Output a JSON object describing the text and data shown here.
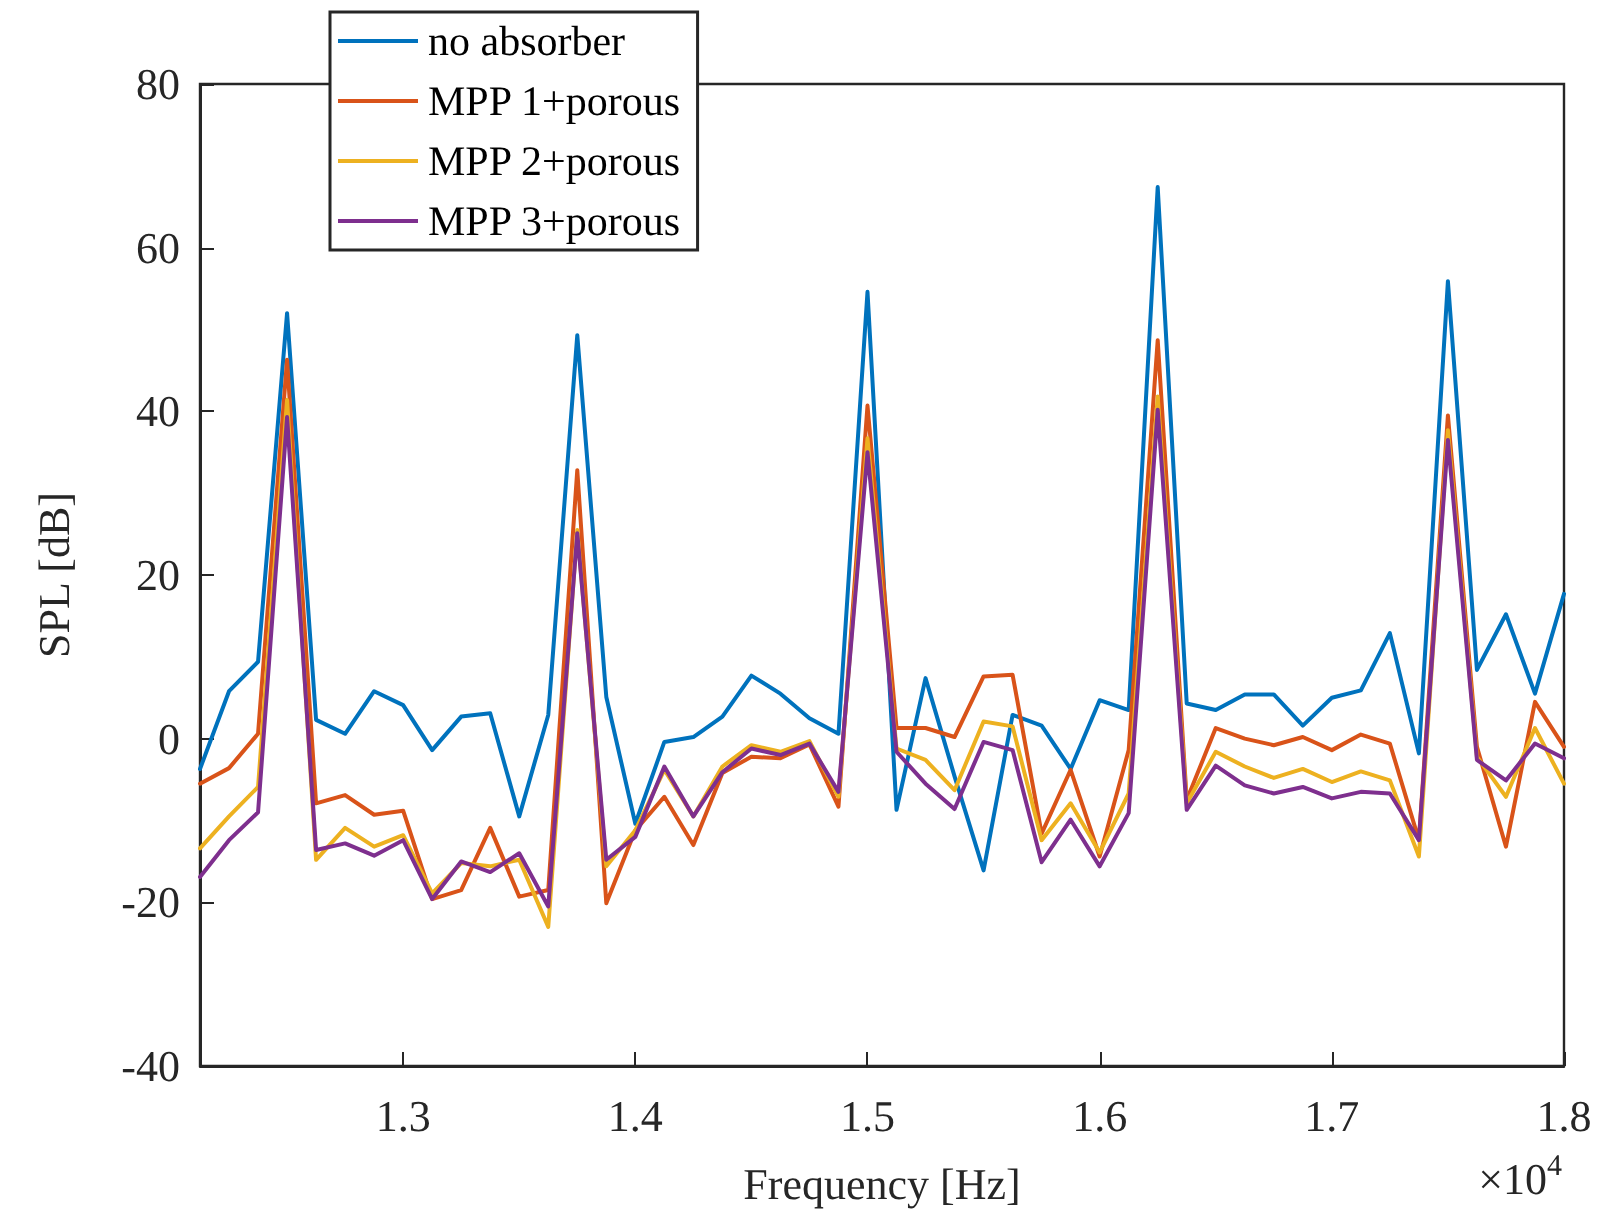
{
  "chart_data": {
    "type": "line",
    "xlabel": "Frequency [Hz]",
    "ylabel": "SPL [dB]",
    "annotations": [
      "×10$^{4}$"
    ],
    "x": [
      1.2125,
      1.225,
      1.2375,
      1.25,
      1.2625,
      1.275,
      1.2875,
      1.3,
      1.3125,
      1.325,
      1.3375,
      1.35,
      1.3625,
      1.375,
      1.3875,
      1.4,
      1.4125,
      1.425,
      1.4375,
      1.45,
      1.4625,
      1.475,
      1.4875,
      1.5,
      1.5125,
      1.525,
      1.5375,
      1.55,
      1.5625,
      1.575,
      1.5875,
      1.6,
      1.6125,
      1.625,
      1.6375,
      1.65,
      1.6625,
      1.675,
      1.6875,
      1.7,
      1.7125,
      1.725,
      1.7375,
      1.75,
      1.7625,
      1.775,
      1.7875,
      1.8
    ],
    "xlim": [
      1.2125,
      1.8
    ],
    "xticks": [
      1.3,
      1.4,
      1.5,
      1.6,
      1.7,
      1.8
    ],
    "ylim": [
      -40,
      80
    ],
    "yticks": [
      -40,
      -20,
      0,
      20,
      40,
      60,
      80
    ],
    "grid": false,
    "legend": "top left",
    "marker": "none",
    "line_style": "solid",
    "series": [
      {
        "name": "no absorber",
        "color": "#0072bd",
        "values": [
          -3.7,
          5.8,
          9.4,
          52.0,
          2.3,
          0.6,
          5.8,
          4.1,
          -1.4,
          2.7,
          3.1,
          -9.5,
          2.9,
          49.3,
          5.1,
          -10.4,
          -0.4,
          0.2,
          2.7,
          7.7,
          5.5,
          2.5,
          0.6,
          54.6,
          -8.7,
          7.4,
          -4.6,
          -16.1,
          2.9,
          1.6,
          -3.7,
          4.7,
          3.5,
          67.4,
          4.3,
          3.5,
          5.4,
          5.4,
          1.6,
          5.0,
          5.9,
          12.9,
          -1.8,
          55.9,
          8.4,
          15.2,
          5.5,
          17.7
        ]
      },
      {
        "name": "MPP 1+porous",
        "color": "#d95319",
        "values": [
          -5.5,
          -3.6,
          0.6,
          46.3,
          -7.9,
          -6.9,
          -9.3,
          -8.8,
          -19.6,
          -18.5,
          -10.9,
          -19.3,
          -18.5,
          32.8,
          -20.1,
          -11.2,
          -7.1,
          -13.0,
          -4.2,
          -2.2,
          -2.4,
          -0.7,
          -8.3,
          40.7,
          1.3,
          1.3,
          0.2,
          7.6,
          7.8,
          -11.6,
          -3.8,
          -14.4,
          -1.4,
          48.7,
          -7.5,
          1.3,
          0.0,
          -0.8,
          0.2,
          -1.4,
          0.5,
          -0.6,
          -12.4,
          39.5,
          -1.0,
          -13.2,
          4.5,
          -1.0
        ]
      },
      {
        "name": "MPP 2+porous",
        "color": "#edb120",
        "values": [
          -13.4,
          -9.5,
          -5.9,
          41.4,
          -14.8,
          -10.9,
          -13.2,
          -11.8,
          -18.9,
          -15.2,
          -15.6,
          -14.8,
          -23.0,
          25.5,
          -15.6,
          -11.2,
          -3.8,
          -9.5,
          -3.4,
          -0.8,
          -1.6,
          -0.3,
          -7.1,
          36.7,
          -1.2,
          -2.6,
          -6.3,
          2.1,
          1.5,
          -12.4,
          -7.9,
          -13.9,
          -6.7,
          41.8,
          -7.9,
          -1.6,
          -3.4,
          -4.8,
          -3.7,
          -5.3,
          -4.0,
          -5.1,
          -14.4,
          37.7,
          -2.2,
          -7.1,
          1.3,
          -5.5
        ]
      },
      {
        "name": "MPP 3+porous",
        "color": "#7e2f8e",
        "values": [
          -16.9,
          -12.4,
          -9.0,
          39.3,
          -13.6,
          -12.8,
          -14.3,
          -12.4,
          -19.6,
          -15.0,
          -16.3,
          -14.0,
          -20.5,
          25.1,
          -14.8,
          -12.0,
          -3.4,
          -9.5,
          -4.1,
          -1.2,
          -2.0,
          -0.6,
          -6.5,
          35.0,
          -1.6,
          -5.5,
          -8.6,
          -0.4,
          -1.4,
          -15.1,
          -9.9,
          -15.6,
          -9.1,
          40.2,
          -8.7,
          -3.3,
          -5.7,
          -6.7,
          -5.9,
          -7.3,
          -6.5,
          -6.7,
          -12.4,
          36.5,
          -2.6,
          -5.1,
          -0.6,
          -2.4
        ]
      }
    ]
  }
}
